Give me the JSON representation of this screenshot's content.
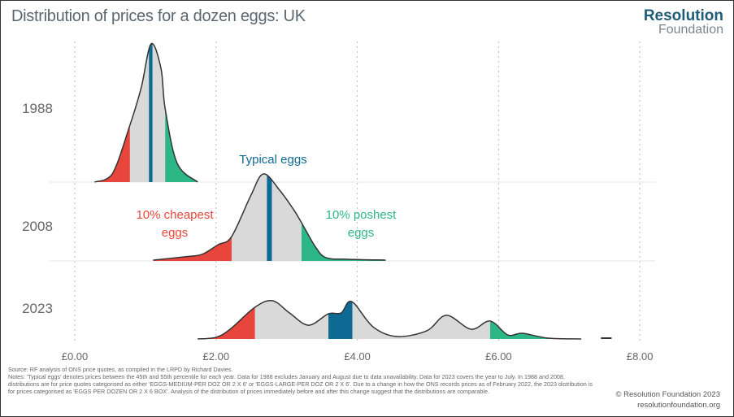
{
  "header": {
    "title": "Distribution of prices for a dozen eggs: UK"
  },
  "logo": {
    "line1": "Resolution",
    "line2": "Foundation"
  },
  "chart_data": {
    "type": "area",
    "title": "Distribution of prices for a dozen eggs: UK",
    "xlabel": "",
    "ylabel": "",
    "xlim": [
      0,
      8
    ],
    "x_ticks": [
      "£0.00",
      "£2.00",
      "£4.00",
      "£6.00",
      "£8.00"
    ],
    "x_tick_values": [
      0,
      2,
      4,
      6,
      8
    ],
    "grid": "vertical dotted",
    "colors": {
      "cheapest": "#e8463d",
      "typical": "#0f6a93",
      "poshest": "#2db686",
      "middle": "#d9d9d9",
      "outline": "#333333"
    },
    "annotations": {
      "typical": "Typical eggs",
      "cheapest_1": "10% cheapest",
      "cheapest_2": "eggs",
      "poshest_1": "10% poshest",
      "poshest_2": "eggs"
    },
    "series": [
      {
        "name": "1988",
        "density": [
          [
            0.28,
            0
          ],
          [
            0.53,
            0.058
          ],
          [
            0.78,
            0.409
          ],
          [
            0.94,
            0.678
          ],
          [
            1.08,
            0.994
          ],
          [
            1.22,
            0.819
          ],
          [
            1.28,
            0.526
          ],
          [
            1.45,
            0.135
          ],
          [
            1.74,
            0
          ]
        ],
        "p10": 0.78,
        "typical": [
          1.05,
          1.1
        ],
        "p90": 1.28
      },
      {
        "name": "2008",
        "density": [
          [
            1.11,
            0.006
          ],
          [
            1.56,
            0.03
          ],
          [
            1.8,
            0.047
          ],
          [
            2.03,
            0.117
          ],
          [
            2.22,
            0.175
          ],
          [
            2.49,
            0.468
          ],
          [
            2.67,
            0.626
          ],
          [
            2.9,
            0.509
          ],
          [
            3.1,
            0.368
          ],
          [
            3.21,
            0.275
          ],
          [
            3.41,
            0.099
          ],
          [
            3.56,
            0.023
          ],
          [
            3.87,
            0.012
          ],
          [
            4.4,
            0.006
          ]
        ],
        "p10": 2.22,
        "typical": [
          2.72,
          2.79
        ],
        "p90": 3.21
      },
      {
        "name": "2023",
        "density": [
          [
            1.74,
            0
          ],
          [
            2.0,
            0.012
          ],
          [
            2.2,
            0.07
          ],
          [
            2.55,
            0.228
          ],
          [
            2.8,
            0.275
          ],
          [
            3.04,
            0.187
          ],
          [
            3.31,
            0.099
          ],
          [
            3.59,
            0.181
          ],
          [
            3.77,
            0.187
          ],
          [
            3.92,
            0.269
          ],
          [
            4.22,
            0.088
          ],
          [
            4.55,
            0.018
          ],
          [
            4.98,
            0.058
          ],
          [
            5.26,
            0.17
          ],
          [
            5.61,
            0.07
          ],
          [
            5.88,
            0.129
          ],
          [
            6.13,
            0.029
          ],
          [
            6.34,
            0.041
          ],
          [
            6.7,
            0.006
          ],
          [
            7.17,
            0
          ]
        ],
        "outlier": [
          7.45,
          7.6
        ],
        "p10": 2.55,
        "typical": [
          3.59,
          3.93
        ],
        "p90": 5.88
      }
    ]
  },
  "footer": {
    "source": "Source: RF analysis of ONS price quotes, as compiled in the LRPD by Richard Davies.",
    "notes": "Notes: 'Typical eggs' denotes prices between the 45th and 55th percentile for each year. Data for 1988 excludes January and August due to data unavailability. Data for 2023 covers the year to July. In 1988 and 2008, distributions are for price quotes categorised as either 'EGGS-MEDIUM-PER DOZ OR 2 X 6' or 'EGGS-LARGE-PER DOZ OR 2 X 6'. Due to a change in how the ONS records prices as of February 2022, the 2023 distribution is for prices categorised as 'EGGS PER DOZEN OR 2 X 6 BOX'. Analysis of the distribution of prices immediately before and after this change suggest that the distributions are comparable.",
    "copyright": "© Resolution Foundation 2023",
    "website": "resolutionfoundation.org"
  }
}
